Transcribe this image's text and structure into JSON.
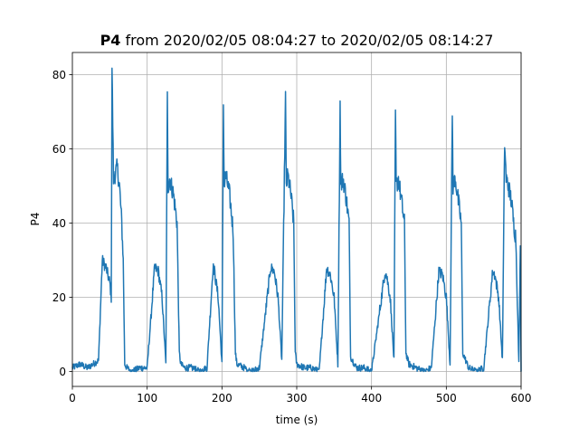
{
  "chart_data": {
    "type": "line",
    "title_bold": "P4",
    "title_rest": " from 2020/02/05 08:04:27 to 2020/02/05 08:14:27",
    "xlabel": "time (s)",
    "ylabel": "P4",
    "xlim": [
      0,
      600
    ],
    "ylim": [
      -4,
      86
    ],
    "x_ticks": [
      0,
      100,
      200,
      300,
      400,
      500,
      600
    ],
    "x_tick_labels": [
      "0",
      "100",
      "200",
      "300",
      "400",
      "500",
      "600"
    ],
    "y_ticks": [
      0,
      20,
      40,
      60,
      80
    ],
    "y_tick_labels": [
      "0",
      "20",
      "40",
      "60",
      "80"
    ],
    "grid": true,
    "color": "#1f77b4",
    "cycle_starts": [
      35,
      110,
      188,
      265,
      340,
      418,
      490,
      562
    ],
    "series": [
      {
        "x": [
          0,
          10,
          20,
          35,
          40,
          45,
          50,
          52,
          53,
          55,
          60,
          63,
          66,
          68,
          70,
          73,
          80,
          90,
          100,
          110,
          115,
          120,
          125,
          127,
          128,
          130,
          135,
          140,
          143,
          145,
          150,
          160,
          170,
          180,
          188,
          190,
          195,
          200,
          202,
          203,
          205,
          210,
          215,
          218,
          220,
          230,
          240,
          250,
          265,
          270,
          275,
          280,
          285,
          286,
          288,
          292,
          296,
          298,
          300,
          310,
          320,
          330,
          340,
          345,
          350,
          355,
          358,
          359,
          362,
          366,
          370,
          372,
          380,
          390,
          400,
          418,
          420,
          425,
          430,
          432,
          433,
          436,
          440,
          444,
          446,
          450,
          460,
          470,
          480,
          490,
          495,
          500,
          505,
          508,
          509,
          512,
          516,
          520,
          522,
          530,
          540,
          550,
          562,
          565,
          570,
          575,
          578,
          580,
          583,
          587,
          590,
          593,
          597,
          599,
          600
        ],
        "y": [
          1,
          2,
          1,
          3,
          30,
          28,
          24,
          20,
          82,
          52,
          55,
          50,
          40,
          30,
          2,
          1,
          0,
          1,
          1,
          28,
          27,
          20,
          2,
          74,
          50,
          52,
          48,
          40,
          5,
          2,
          1,
          1,
          0,
          1,
          28,
          27,
          20,
          2,
          72,
          50,
          53,
          48,
          38,
          5,
          2,
          1,
          0,
          1,
          28,
          27,
          20,
          3,
          74,
          50,
          53,
          48,
          40,
          5,
          2,
          1,
          1,
          0,
          28,
          26,
          20,
          2,
          72,
          50,
          52,
          47,
          40,
          4,
          1,
          1,
          0,
          27,
          26,
          20,
          3,
          70,
          50,
          52,
          46,
          40,
          5,
          2,
          1,
          0,
          1,
          27,
          26,
          20,
          2,
          70,
          50,
          52,
          46,
          40,
          5,
          1,
          0,
          1,
          27,
          26,
          20,
          3,
          62,
          52,
          50,
          46,
          40,
          36,
          2,
          35,
          0
        ]
      }
    ]
  }
}
